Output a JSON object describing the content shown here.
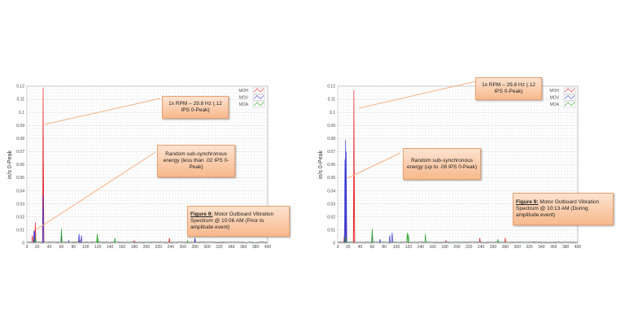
{
  "chart_data": [
    {
      "type": "line",
      "ylabel": "in/s 0-Peak",
      "xlabel": "",
      "xlim": [
        3,
        400
      ],
      "ylim": [
        0,
        0.12
      ],
      "x_ticks": [
        "3",
        "20",
        "40",
        "60",
        "80",
        "100",
        "120",
        "140",
        "160",
        "180",
        "200",
        "220",
        "240",
        "260",
        "280",
        "300",
        "320",
        "340",
        "360",
        "380",
        "400"
      ],
      "y_ticks": [
        "0",
        "0.01",
        "0.02",
        "0.03",
        "0.04",
        "0.05",
        "0.06",
        "0.07",
        "0.08",
        "0.09",
        "0.1",
        "0.11",
        "0.12"
      ],
      "grid": true,
      "legend_position": "top-right",
      "series": [
        {
          "name": "MOH",
          "color": "#e8262b",
          "peaks": [
            [
              12,
              0.006
            ],
            [
              15,
              0.006
            ],
            [
              17,
              0.016
            ],
            [
              29.8,
              0.119
            ],
            [
              30.2,
              0.06
            ],
            [
              60,
              0.005
            ],
            [
              90,
              0.003
            ],
            [
              180,
              0.002
            ],
            [
              238,
              0.004
            ],
            [
              280,
              0.003
            ]
          ]
        },
        {
          "name": "MOV",
          "color": "#3b3bd6",
          "peaks": [
            [
              15,
              0.01
            ],
            [
              16,
              0.009
            ],
            [
              29.8,
              0.037
            ],
            [
              60,
              0.008
            ],
            [
              72,
              0.002
            ],
            [
              89,
              0.007
            ],
            [
              93,
              0.006
            ],
            [
              280,
              0.004
            ]
          ]
        },
        {
          "name": "MOA",
          "color": "#2aa52a",
          "peaks": [
            [
              17,
              0.004
            ],
            [
              60,
              0.011
            ],
            [
              119,
              0.007
            ],
            [
              120,
              0.004
            ],
            [
              148,
              0.004
            ],
            [
              208,
              0.001
            ],
            [
              268,
              0.002
            ]
          ]
        }
      ],
      "annotations": {
        "rpm": "1x RPM – 29.8 Hz (.12 IPS 0-Peak)",
        "subsync": "Random sub-synchronous energy (less than .02 IPS 0-Peak)",
        "figure_label": "Figure 9:",
        "figure_caption": "Motor Outboard Vibration Spectrum @ 10:06 AM (Prior to amplitude event)"
      }
    },
    {
      "type": "line",
      "ylabel": "in/s 0-Peak",
      "xlabel": "",
      "xlim": [
        3,
        400
      ],
      "ylim": [
        0,
        0.12
      ],
      "x_ticks": [
        "3",
        "20",
        "40",
        "60",
        "80",
        "100",
        "120",
        "140",
        "160",
        "180",
        "200",
        "220",
        "240",
        "260",
        "280",
        "300",
        "320",
        "340",
        "360",
        "380",
        "400"
      ],
      "y_ticks": [
        "0",
        "0.01",
        "0.02",
        "0.03",
        "0.04",
        "0.05",
        "0.06",
        "0.07",
        "0.08",
        "0.09",
        "0.1",
        "0.11",
        "0.12"
      ],
      "grid": true,
      "legend_position": "top-right",
      "series": [
        {
          "name": "MOH",
          "color": "#e8262b",
          "peaks": [
            [
              14,
              0.006
            ],
            [
              16,
              0.035
            ],
            [
              17,
              0.03
            ],
            [
              29.8,
              0.117
            ],
            [
              30.2,
              0.058
            ],
            [
              60,
              0.007
            ],
            [
              182,
              0.002
            ],
            [
              238,
              0.004
            ],
            [
              280,
              0.004
            ]
          ]
        },
        {
          "name": "MOV",
          "color": "#3b3bd6",
          "peaks": [
            [
              15,
              0.064
            ],
            [
              16,
              0.079
            ],
            [
              17,
              0.07
            ],
            [
              60,
              0.008
            ],
            [
              73,
              0.003
            ],
            [
              89,
              0.006
            ],
            [
              93,
              0.008
            ],
            [
              327,
              0.001
            ]
          ]
        },
        {
          "name": "MOA",
          "color": "#2aa52a",
          "peaks": [
            [
              16,
              0.005
            ],
            [
              60,
              0.011
            ],
            [
              118,
              0.008
            ],
            [
              120,
              0.007
            ],
            [
              148,
              0.007
            ],
            [
              268,
              0.003
            ]
          ]
        }
      ],
      "annotations": {
        "rpm": "1x RPM – 29.8 Hz (.12 IPS 0-Peak)",
        "subsync": "Random sub-synchronous energy (up to .08 IPS 0-Peak)",
        "figure_label": "Figure 9:",
        "figure_caption": "Motor Outboard Vibration Spectrum @ 10:13 AM (During amplitude event)"
      }
    }
  ]
}
